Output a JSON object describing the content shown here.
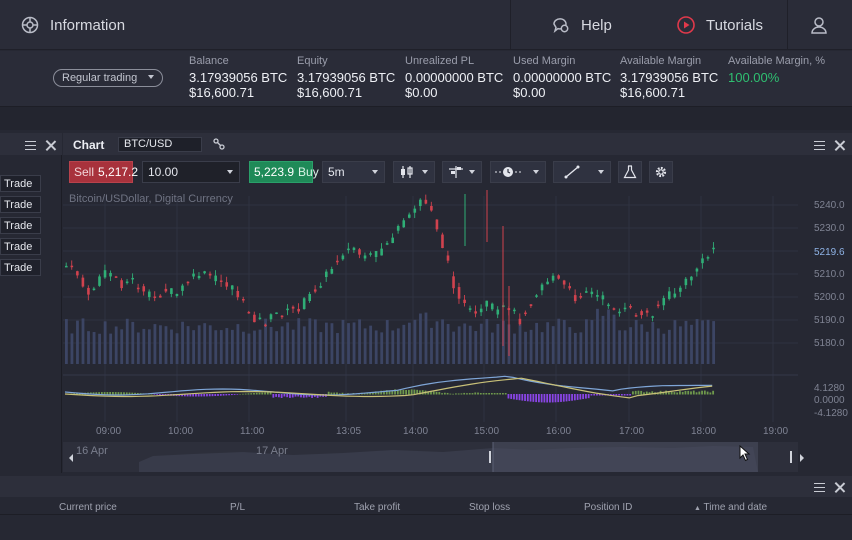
{
  "nav": {
    "information": "Information",
    "help": "Help",
    "tutorials": "Tutorials"
  },
  "account": {
    "mode": "Regular trading",
    "columns": [
      {
        "label": "Balance",
        "v1": "3.17939056 BTC",
        "v2": "$16,600.71"
      },
      {
        "label": "Equity",
        "v1": "3.17939056 BTC",
        "v2": "$16,600.71"
      },
      {
        "label": "Unrealized PL",
        "v1": "0.00000000 BTC",
        "v2": "$0.00"
      },
      {
        "label": "Used Margin",
        "v1": "0.00000000 BTC",
        "v2": "$0.00"
      },
      {
        "label": "Available Margin",
        "v1": "3.17939056 BTC",
        "v2": "$16,600.71"
      },
      {
        "label": "Available Margin, %",
        "v1": "100.00%",
        "v2": ""
      }
    ]
  },
  "trade_buttons": [
    "Trade",
    "Trade",
    "Trade",
    "Trade",
    "Trade"
  ],
  "chart": {
    "tab": "Chart",
    "symbol": "BTC/USD",
    "sell_label": "Sell",
    "sell_price": "5,217.2",
    "quantity": "10.00",
    "buy_price": "5,223.9",
    "buy_label": "Buy",
    "timeframe": "5m",
    "subtitle": "Bitcoin/USDollar, Digital Currency"
  },
  "chart_data": {
    "type": "candlestick",
    "price_axis": [
      "5240.0",
      "5230.0",
      "5219.6",
      "5210.0",
      "5200.0",
      "5190.0",
      "5180.0"
    ],
    "current_price": "5219.6",
    "indicator_axis": [
      "4.1280",
      "0.0000",
      "-4.1280"
    ],
    "time_axis": [
      "09:00",
      "10:00",
      "11:00",
      "13:05",
      "14:00",
      "15:00",
      "16:00",
      "17:00",
      "18:00",
      "19:00"
    ],
    "navigator_dates": [
      "16 Apr",
      "17 Apr"
    ],
    "ylim": [
      5176,
      5244
    ],
    "colors": {
      "up": "#2fae76",
      "down": "#d0424e",
      "volume": "#3c4564",
      "macd_up": "#6f9a4c",
      "macd_down": "#8a45e6",
      "line1": "#7fa6d8",
      "line2": "#c8c078"
    }
  },
  "positions": {
    "columns": [
      "Current price",
      "P/L",
      "Take profit",
      "Stop loss",
      "Position ID",
      "Time and date"
    ]
  }
}
